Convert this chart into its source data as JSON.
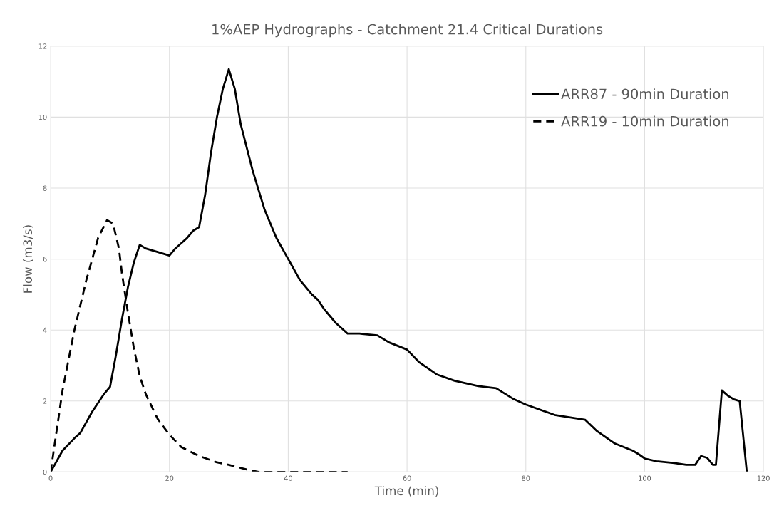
{
  "chart_data": {
    "type": "line",
    "title": "1%AEP Hydrographs - Catchment 21.4 Critical Durations",
    "xlabel": "Time (min)",
    "ylabel": "Flow (m3/s)",
    "xlim": [
      0,
      120
    ],
    "xticks": [
      0,
      20,
      40,
      60,
      80,
      100,
      120
    ],
    "ylim": [
      0,
      12
    ],
    "yticks": [
      0,
      2,
      4,
      6,
      8,
      10,
      12
    ],
    "grid": true,
    "legend": "top right",
    "marker": "none",
    "series": [
      {
        "name": "ARR87 - 90min Duration",
        "color": "#000000",
        "line_style": "solid",
        "x": [
          0,
          2,
          4,
          5,
          6,
          7,
          8,
          9,
          10,
          11,
          12,
          13,
          14,
          15,
          16,
          18,
          20,
          21,
          23,
          24,
          25,
          26,
          27,
          28,
          29,
          30,
          31,
          32,
          34,
          36,
          38,
          40,
          42,
          44,
          45,
          46,
          48,
          50,
          52,
          55,
          57,
          60,
          62,
          65,
          68,
          72,
          75,
          78,
          80,
          85,
          90,
          92,
          95,
          98,
          99,
          100,
          102,
          105,
          107,
          108.5,
          109.5,
          110.5,
          111.5,
          112,
          113,
          114,
          115,
          116,
          117.2
        ],
        "values": [
          0,
          0.6,
          0.95,
          1.1,
          1.4,
          1.7,
          1.95,
          2.2,
          2.4,
          3.3,
          4.3,
          5.2,
          5.9,
          6.4,
          6.3,
          6.2,
          6.1,
          6.3,
          6.6,
          6.8,
          6.9,
          7.8,
          9.0,
          10.0,
          10.8,
          11.35,
          10.8,
          9.8,
          8.5,
          7.4,
          6.6,
          6.0,
          5.4,
          5.0,
          4.85,
          4.6,
          4.2,
          3.9,
          3.9,
          3.85,
          3.65,
          3.45,
          3.1,
          2.75,
          2.57,
          2.42,
          2.36,
          2.05,
          1.9,
          1.6,
          1.47,
          1.15,
          0.8,
          0.6,
          0.5,
          0.38,
          0.3,
          0.25,
          0.2,
          0.2,
          0.45,
          0.4,
          0.2,
          0.2,
          2.3,
          2.15,
          2.05,
          2.0,
          0
        ]
      },
      {
        "name": "ARR19 - 10min Duration",
        "color": "#000000",
        "line_style": "dashed",
        "x": [
          0,
          2,
          4,
          6,
          8,
          9.5,
          10.5,
          11.5,
          12,
          13,
          14,
          15,
          16,
          18,
          20,
          22,
          25,
          28,
          30,
          33,
          35,
          40,
          50
        ],
        "values": [
          0,
          2.3,
          4.0,
          5.4,
          6.6,
          7.1,
          7.0,
          6.3,
          5.6,
          4.5,
          3.5,
          2.7,
          2.2,
          1.5,
          1.05,
          0.7,
          0.45,
          0.27,
          0.2,
          0.07,
          0,
          0,
          0
        ]
      }
    ]
  }
}
